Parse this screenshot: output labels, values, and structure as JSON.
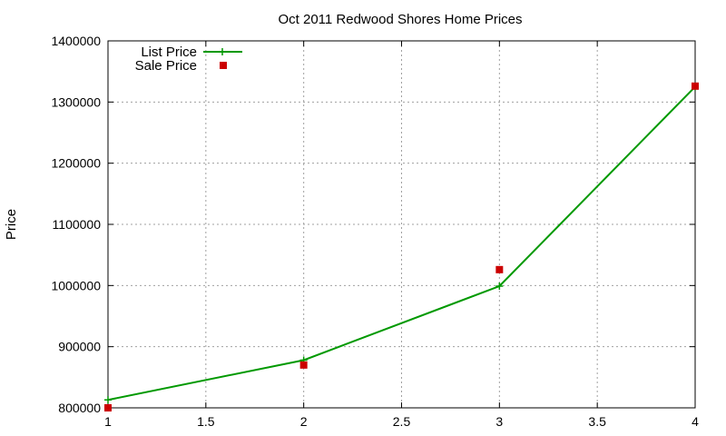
{
  "chart_data": {
    "type": "line",
    "title": "Oct 2011 Redwood Shores Home Prices",
    "xlabel": "",
    "ylabel": "Price",
    "xlim": [
      1,
      4
    ],
    "ylim": [
      800000,
      1400000
    ],
    "xticks": [
      1,
      1.5,
      2,
      2.5,
      3,
      3.5,
      4
    ],
    "yticks": [
      800000,
      900000,
      1000000,
      1100000,
      1200000,
      1300000,
      1400000
    ],
    "xtick_labels": [
      "1",
      "1.5",
      "2",
      "2.5",
      "3",
      "3.5",
      "4"
    ],
    "ytick_labels": [
      "800000",
      "900000",
      "1000000",
      "1100000",
      "1200000",
      "1300000",
      "1400000"
    ],
    "grid": true,
    "legend_position": "top-left",
    "series": [
      {
        "name": "List Price",
        "style": "line-with-plus-markers",
        "color": "#009900",
        "x": [
          1,
          2,
          3,
          4
        ],
        "y": [
          813000,
          878000,
          999000,
          1325000
        ]
      },
      {
        "name": "Sale Price",
        "style": "square-markers",
        "color": "#cc0000",
        "x": [
          1,
          2,
          3,
          4
        ],
        "y": [
          800000,
          870000,
          1026000,
          1326000
        ]
      }
    ]
  }
}
